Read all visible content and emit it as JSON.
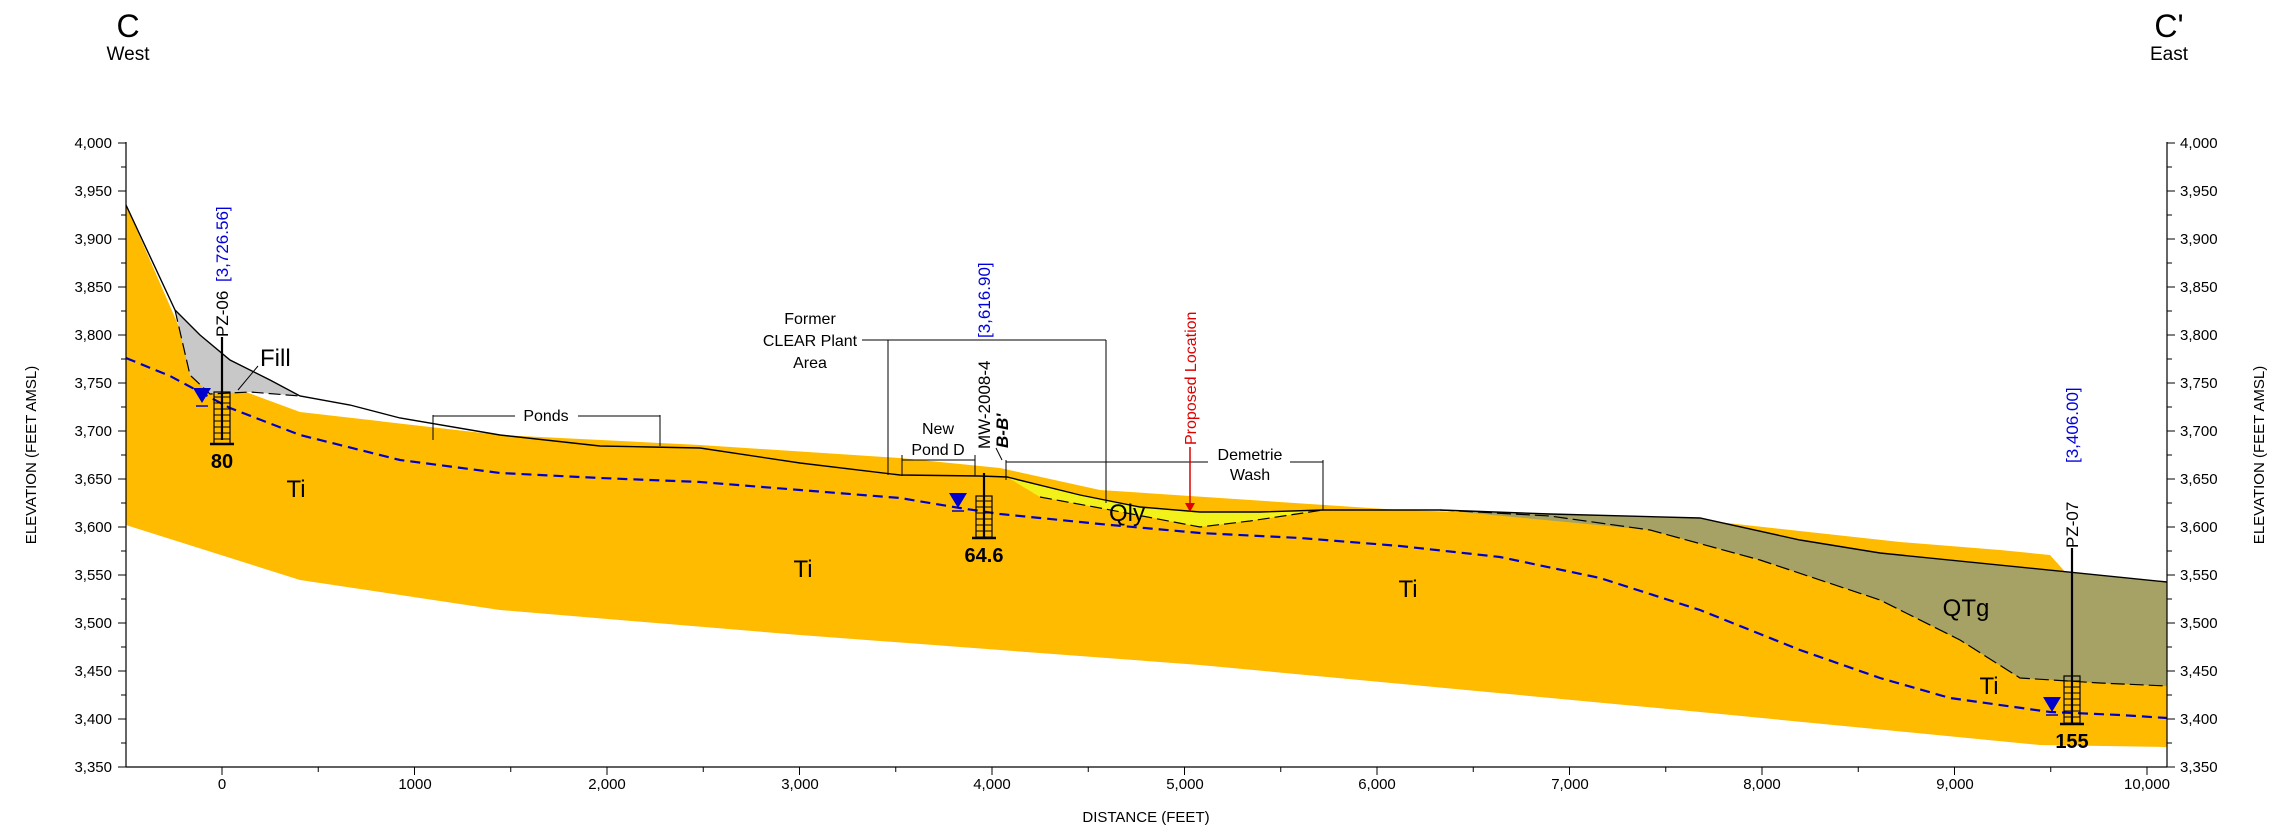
{
  "section": {
    "start_letter": "C",
    "start_dir": "West",
    "end_letter": "C'",
    "end_dir": "East"
  },
  "axes": {
    "x_label": "DISTANCE (FEET)",
    "y_label": "ELEVATION (FEET AMSL)",
    "x_ticks": [
      "0",
      "1000",
      "2,000",
      "3,000",
      "4,000",
      "5,000",
      "6,000",
      "7,000",
      "8,000",
      "9,000",
      "10,000"
    ],
    "y_ticks": [
      "4,000",
      "3,950",
      "3,900",
      "3,850",
      "3,800",
      "3,750",
      "3,700",
      "3,650",
      "3,600",
      "3,550",
      "3,500",
      "3,450",
      "3,400",
      "3,350"
    ],
    "x_range": [
      -500,
      10100
    ],
    "y_range": [
      3350,
      4000
    ]
  },
  "units": {
    "ti_1": "Ti",
    "ti_2": "Ti",
    "ti_3": "Ti",
    "ti_4": "Ti",
    "fill": "Fill",
    "qly": "Qly",
    "qtg": "QTg"
  },
  "features": {
    "ponds": "Ponds",
    "former_plant": [
      "Former",
      "CLEAR Plant",
      "Area"
    ],
    "new_pond": [
      "New",
      "Pond D"
    ],
    "demetrie": [
      "Demetrie",
      "Wash"
    ],
    "proposed": "Proposed Location",
    "crossing": "B-B'"
  },
  "wells": [
    {
      "name": "PZ-06",
      "elev": "[3,726.56]",
      "depth": "80",
      "x": 0
    },
    {
      "name": "MW-2008-4",
      "elev": "[3,616.90]",
      "depth": "64.6",
      "x": 3960
    },
    {
      "name": "PZ-07",
      "elev": "[3,406.00]",
      "depth": "155",
      "x": 9620
    }
  ],
  "colors": {
    "ti": "#FFBB00",
    "fill": "#C8C8C8",
    "qly": "#F2F21A",
    "qtg": "#A6A265",
    "water": "#0000CC",
    "proposed": "#DD0000"
  }
}
